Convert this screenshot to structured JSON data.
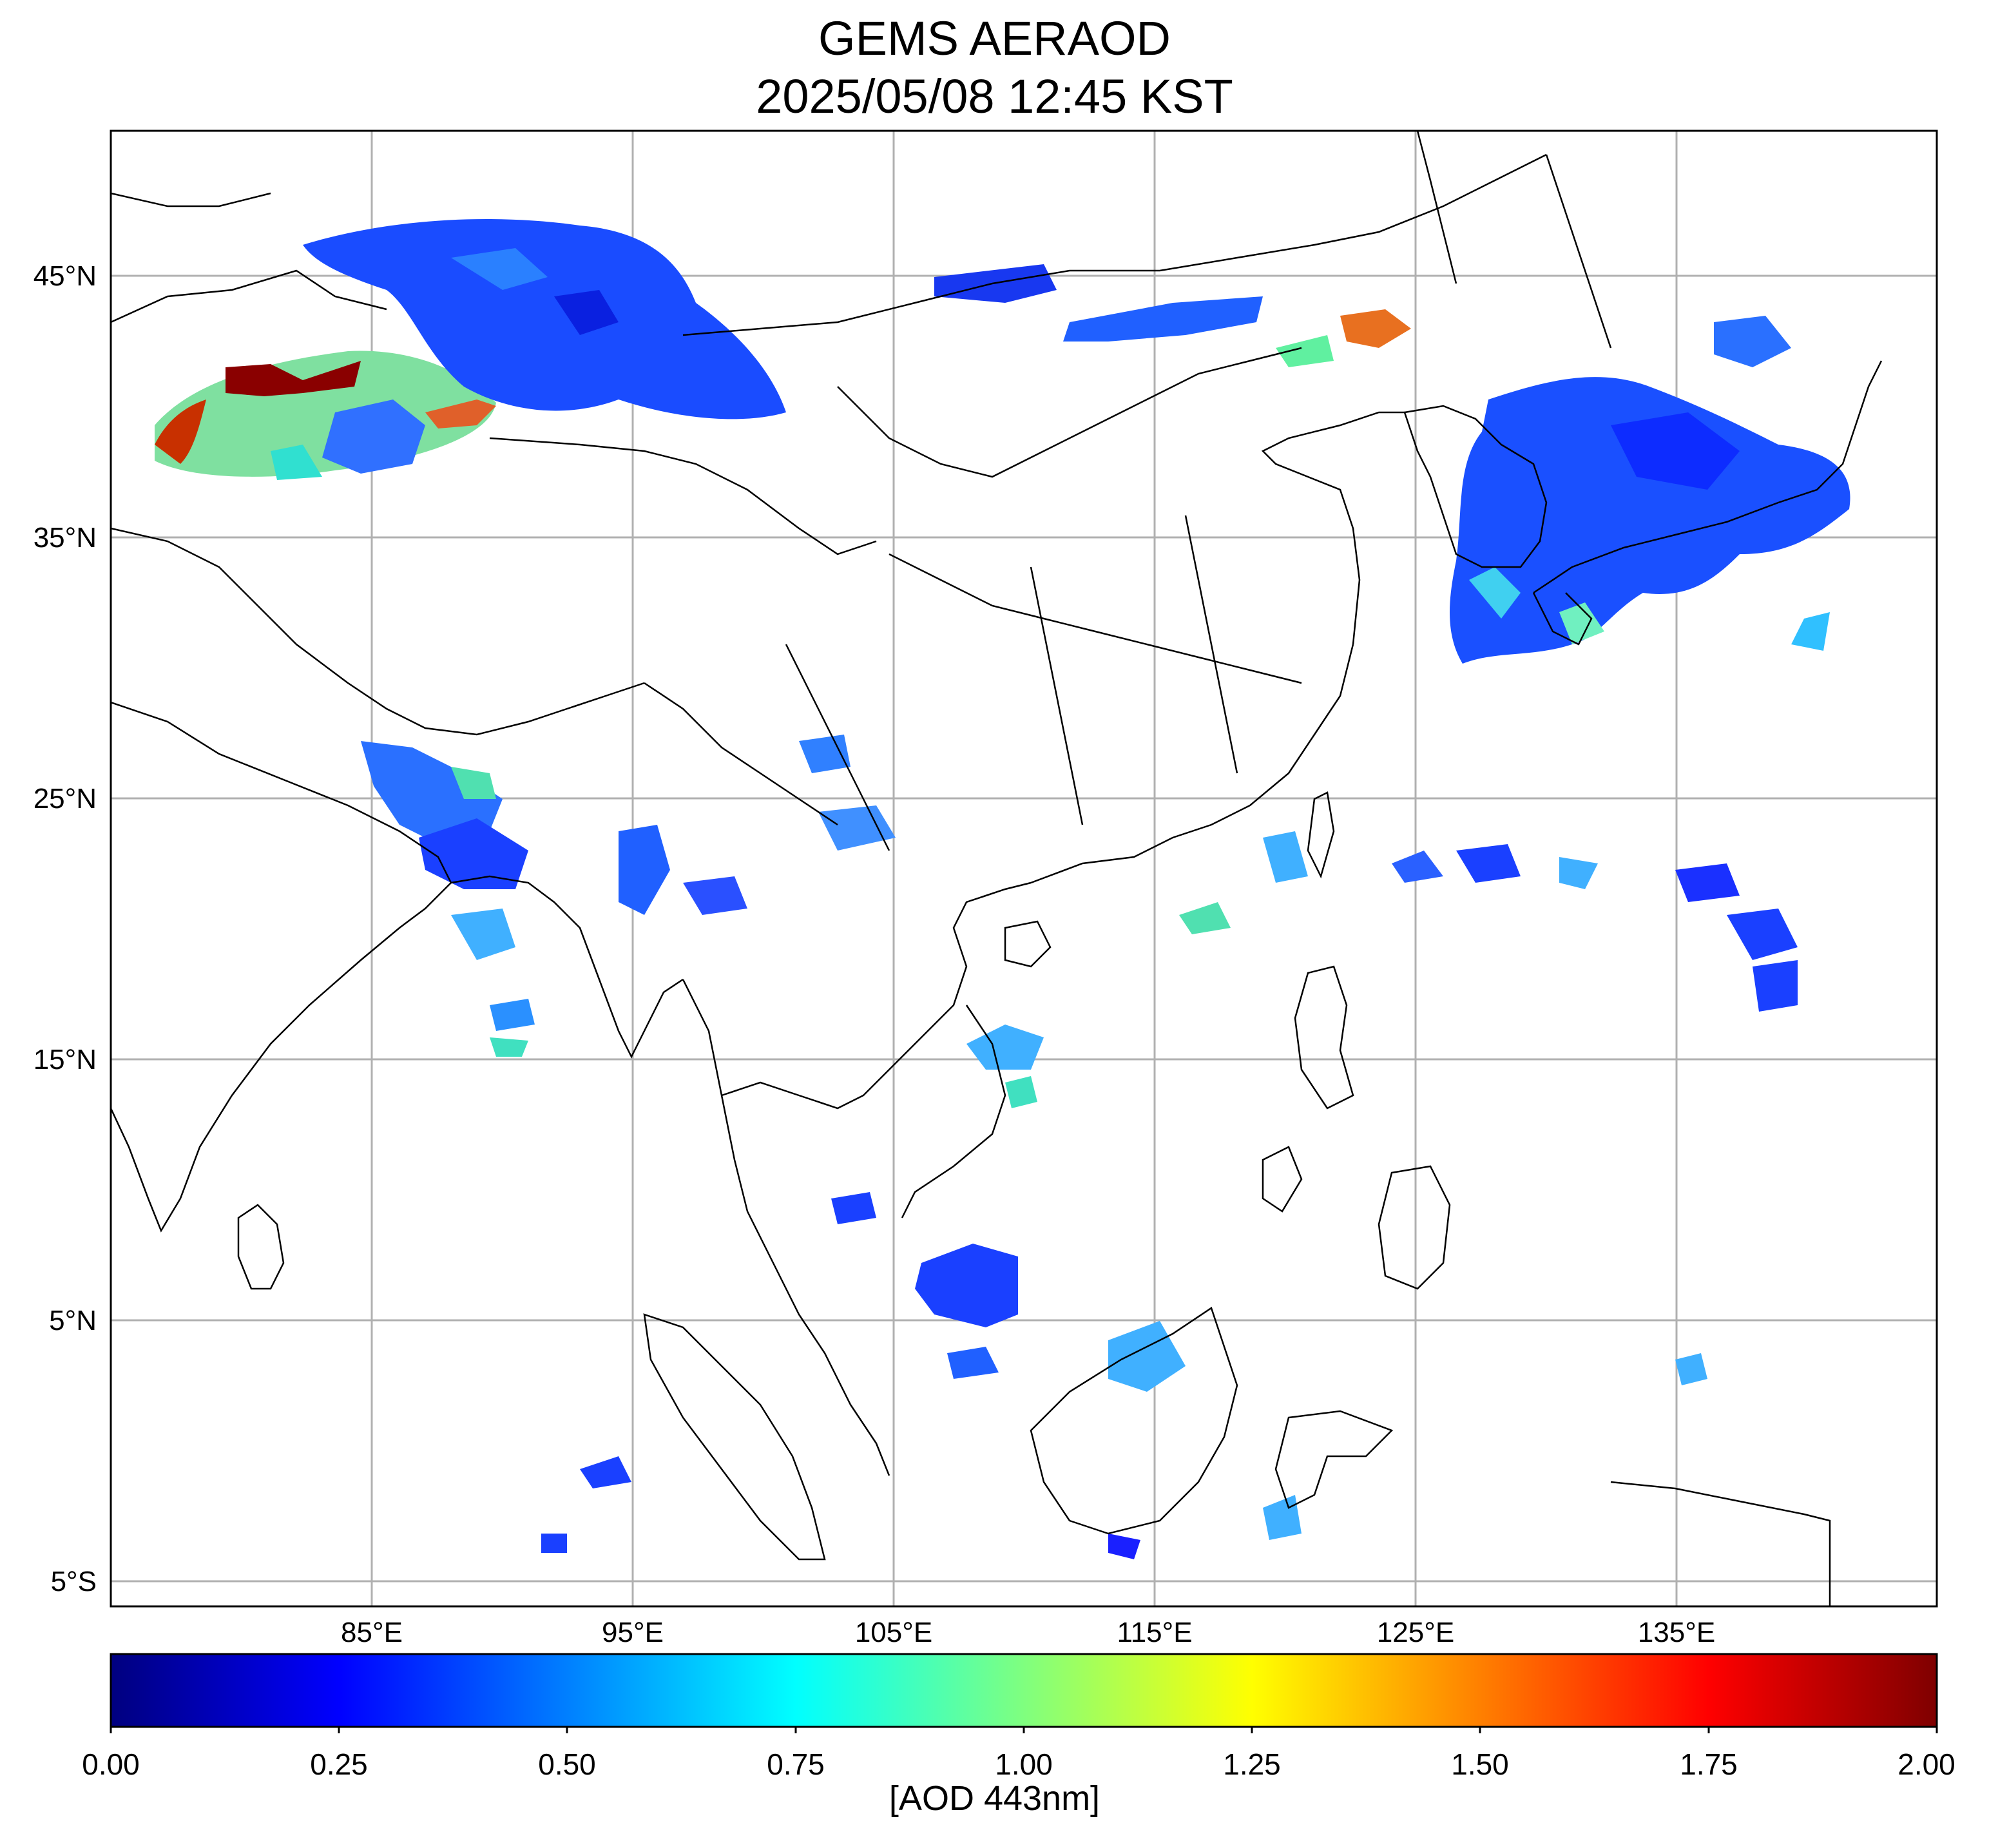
{
  "title": {
    "line1": "GEMS AERAOD",
    "line2": "2025/05/08 12:45 KST"
  },
  "lat_labels": [
    "45°N",
    "35°N",
    "25°N",
    "15°N",
    "5°N",
    "5°S"
  ],
  "lon_labels": [
    "85°E",
    "95°E",
    "105°E",
    "115°E",
    "125°E",
    "135°E"
  ],
  "colorbar": {
    "ticks": [
      "0.00",
      "0.25",
      "0.50",
      "0.75",
      "1.00",
      "1.25",
      "1.50",
      "1.75",
      "2.00"
    ],
    "units": "[AOD 443nm]",
    "min": 0,
    "max": 2,
    "colormap": "jet",
    "stops": [
      "#00007f",
      "#0000ff",
      "#007fff",
      "#00ffff",
      "#7fff7f",
      "#ffff00",
      "#ff7f00",
      "#ff0000",
      "#7f0000"
    ]
  },
  "map": {
    "lat_range": [
      -6,
      50.5
    ],
    "lon_range": [
      75,
      145
    ],
    "gridlines": true,
    "gridline_color": "#b0b0b0"
  }
}
